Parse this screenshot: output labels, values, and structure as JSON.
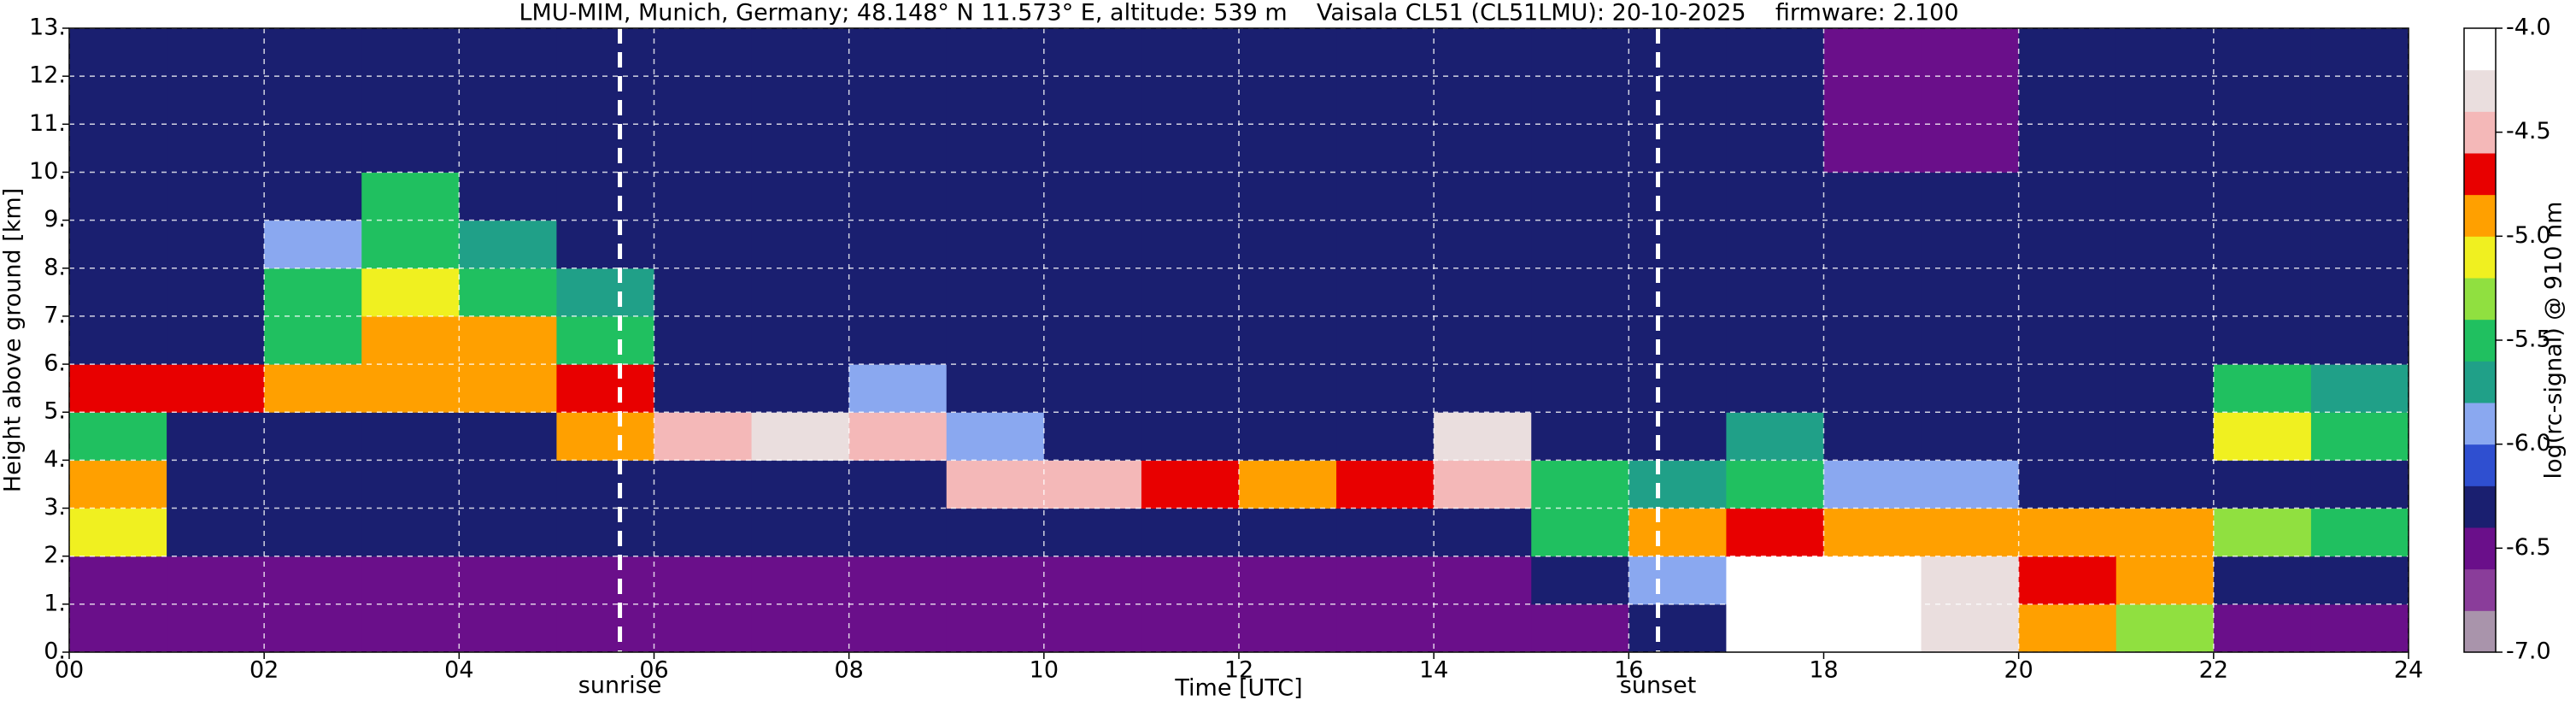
{
  "chart_data": {
    "type": "heatmap",
    "title": "LMU-MIM, Munich, Germany; 48.148° N 11.573° E, altitude: 539 m    Vaisala CL51 (CL51LMU): 20-10-2025    firmware: 2.100",
    "xlabel": "Time [UTC]",
    "ylabel": "Height above ground [km]",
    "xlim": [
      0,
      24
    ],
    "ylim": [
      0,
      13
    ],
    "xticks": [
      {
        "value": 0,
        "label": "00"
      },
      {
        "value": 2,
        "label": "02"
      },
      {
        "value": 4,
        "label": "04"
      },
      {
        "value": 6,
        "label": "06"
      },
      {
        "value": 8,
        "label": "08"
      },
      10,
      12,
      14,
      16,
      18,
      20,
      22,
      24
    ],
    "yticks": [
      {
        "value": 0,
        "label": "0."
      },
      {
        "value": 1,
        "label": "1."
      },
      {
        "value": 2,
        "label": "2."
      },
      {
        "value": 3,
        "label": "3."
      },
      {
        "value": 4,
        "label": "4."
      },
      {
        "value": 5,
        "label": "5."
      },
      {
        "value": 6,
        "label": "6."
      },
      {
        "value": 7,
        "label": "7."
      },
      {
        "value": 8,
        "label": "8."
      },
      {
        "value": 9,
        "label": "9."
      },
      {
        "value": 10,
        "label": "10."
      },
      {
        "value": 11,
        "label": "11."
      },
      {
        "value": 12,
        "label": "12."
      },
      {
        "value": 13,
        "label": "13."
      }
    ],
    "grid": true,
    "events": [
      {
        "label": "sunrise",
        "x": 5.65
      },
      {
        "label": "sunset",
        "x": 16.3
      }
    ],
    "colorbar_label": "log(rc-signal) @ 910 nm",
    "clim": [
      -7,
      -4
    ],
    "cticks": [
      {
        "value": -7,
        "label": "-7.0"
      },
      {
        "value": -6.5,
        "label": "-6.5"
      },
      {
        "value": -6,
        "label": "-6.0"
      },
      {
        "value": -5.5,
        "label": "-5.5"
      },
      {
        "value": -5,
        "label": "-5.0"
      },
      {
        "value": -4.5,
        "label": "-4.5"
      },
      {
        "value": -4,
        "label": "-4.0"
      }
    ],
    "colormap": [
      "#a994ab",
      "#8a3d9a",
      "#6a0f8a",
      "#1a1f70",
      "#2f4fd0",
      "#8aa8f0",
      "#20a088",
      "#20c060",
      "#90e040",
      "#f0f020",
      "#ffa000",
      "#e80000",
      "#f4b8b8",
      "#eadede",
      "#ffffff"
    ],
    "xbins": [
      0,
      1,
      2,
      3,
      4,
      5,
      6,
      7,
      8,
      9,
      10,
      11,
      12,
      13,
      14,
      15,
      16,
      17,
      18,
      19,
      20,
      21,
      22,
      23,
      24
    ],
    "ybins": [
      0,
      1,
      2,
      3,
      4,
      5,
      6,
      7,
      8,
      9,
      10,
      11,
      12,
      13
    ],
    "z": [
      [
        -6.6,
        -6.6,
        -6.6,
        -6.6,
        -6.6,
        -6.6,
        -6.6,
        -6.6,
        -6.6,
        -6.6,
        -6.6,
        -6.6,
        -6.6,
        -6.6,
        -6.5,
        -6.4,
        -6.3,
        -4.1,
        -4.1,
        -4.3,
        -4.9,
        -5.3,
        -6.6,
        -6.6
      ],
      [
        -6.5,
        -6.5,
        -6.5,
        -6.5,
        -6.5,
        -6.5,
        -6.5,
        -6.5,
        -6.5,
        -6.5,
        -6.5,
        -6.5,
        -6.5,
        -6.5,
        -6.5,
        -6.2,
        -5.9,
        -4.1,
        -4.1,
        -4.3,
        -4.8,
        -5.0,
        -6.3,
        -6.2
      ],
      [
        -5.2,
        -6.3,
        -6.3,
        -6.3,
        -6.3,
        -6.3,
        -6.3,
        -6.3,
        -6.3,
        -6.3,
        -6.3,
        -6.3,
        -6.3,
        -6.3,
        -6.3,
        -5.5,
        -5.0,
        -4.8,
        -4.9,
        -4.9,
        -5.0,
        -5.0,
        -5.3,
        -5.6
      ],
      [
        -4.9,
        -6.3,
        -6.3,
        -6.3,
        -6.3,
        -6.3,
        -6.3,
        -6.3,
        -6.3,
        -4.5,
        -4.5,
        -4.7,
        -4.9,
        -4.7,
        -4.5,
        -5.4,
        -5.8,
        -5.6,
        -6.0,
        -6.0,
        -6.3,
        -6.3,
        -6.3,
        -6.3
      ],
      [
        -5.6,
        -6.3,
        -6.3,
        -6.3,
        -6.3,
        -5.0,
        -4.5,
        -4.3,
        -4.5,
        -6.0,
        -6.3,
        -6.3,
        -6.3,
        -6.3,
        -4.3,
        -6.3,
        -6.3,
        -5.8,
        -6.3,
        -6.3,
        -6.3,
        -6.3,
        -5.2,
        -5.5
      ],
      [
        -4.8,
        -4.7,
        -5.0,
        -5.0,
        -5.0,
        -4.7,
        -6.3,
        -6.3,
        -6.0,
        -6.3,
        -6.3,
        -6.3,
        -6.3,
        -6.3,
        -6.3,
        -6.3,
        -6.3,
        -6.3,
        -6.3,
        -6.3,
        -6.3,
        -6.3,
        -5.6,
        -5.8
      ],
      [
        -6.3,
        -6.3,
        -5.5,
        -5.0,
        -4.9,
        -5.4,
        -6.3,
        -6.3,
        -6.3,
        -6.3,
        -6.3,
        -6.3,
        -6.3,
        -6.3,
        -6.3,
        -6.3,
        -6.3,
        -6.3,
        -6.3,
        -6.3,
        -6.3,
        -6.3,
        -6.3,
        -6.3
      ],
      [
        -6.3,
        -6.3,
        -5.6,
        -5.2,
        -5.4,
        -5.8,
        -6.3,
        -6.3,
        -6.3,
        -6.3,
        -6.3,
        -6.3,
        -6.3,
        -6.3,
        -6.3,
        -6.3,
        -6.3,
        -6.3,
        -6.3,
        -6.3,
        -6.3,
        -6.3,
        -6.3,
        -6.3
      ],
      [
        -6.3,
        -6.3,
        -5.9,
        -5.4,
        -5.8,
        -6.3,
        -6.3,
        -6.3,
        -6.3,
        -6.3,
        -6.3,
        -6.3,
        -6.3,
        -6.3,
        -6.3,
        -6.3,
        -6.3,
        -6.3,
        -6.3,
        -6.3,
        -6.3,
        -6.3,
        -6.3,
        -6.3
      ],
      [
        -6.3,
        -6.3,
        -6.3,
        -5.6,
        -6.3,
        -6.3,
        -6.3,
        -6.3,
        -6.3,
        -6.3,
        -6.3,
        -6.3,
        -6.3,
        -6.3,
        -6.3,
        -6.3,
        -6.3,
        -6.3,
        -6.3,
        -6.3,
        -6.3,
        -6.3,
        -6.3,
        -6.3
      ],
      [
        -6.3,
        -6.3,
        -6.3,
        -6.3,
        -6.3,
        -6.3,
        -6.3,
        -6.3,
        -6.3,
        -6.3,
        -6.3,
        -6.3,
        -6.3,
        -6.3,
        -6.3,
        -6.3,
        -6.3,
        -6.3,
        -6.6,
        -6.6,
        -6.3,
        -6.3,
        -6.3,
        -6.3
      ],
      [
        -6.3,
        -6.3,
        -6.3,
        -6.3,
        -6.3,
        -6.3,
        -6.3,
        -6.3,
        -6.3,
        -6.3,
        -6.3,
        -6.3,
        -6.3,
        -6.3,
        -6.3,
        -6.3,
        -6.3,
        -6.3,
        -6.6,
        -6.6,
        -6.3,
        -6.3,
        -6.3,
        -6.3
      ],
      [
        -6.3,
        -6.3,
        -6.3,
        -6.3,
        -6.3,
        -6.3,
        -6.3,
        -6.3,
        -6.3,
        -6.3,
        -6.3,
        -6.3,
        -6.3,
        -6.3,
        -6.3,
        -6.3,
        -6.3,
        -6.3,
        -6.6,
        -6.6,
        -6.3,
        -6.3,
        -6.3,
        -6.3
      ]
    ]
  }
}
